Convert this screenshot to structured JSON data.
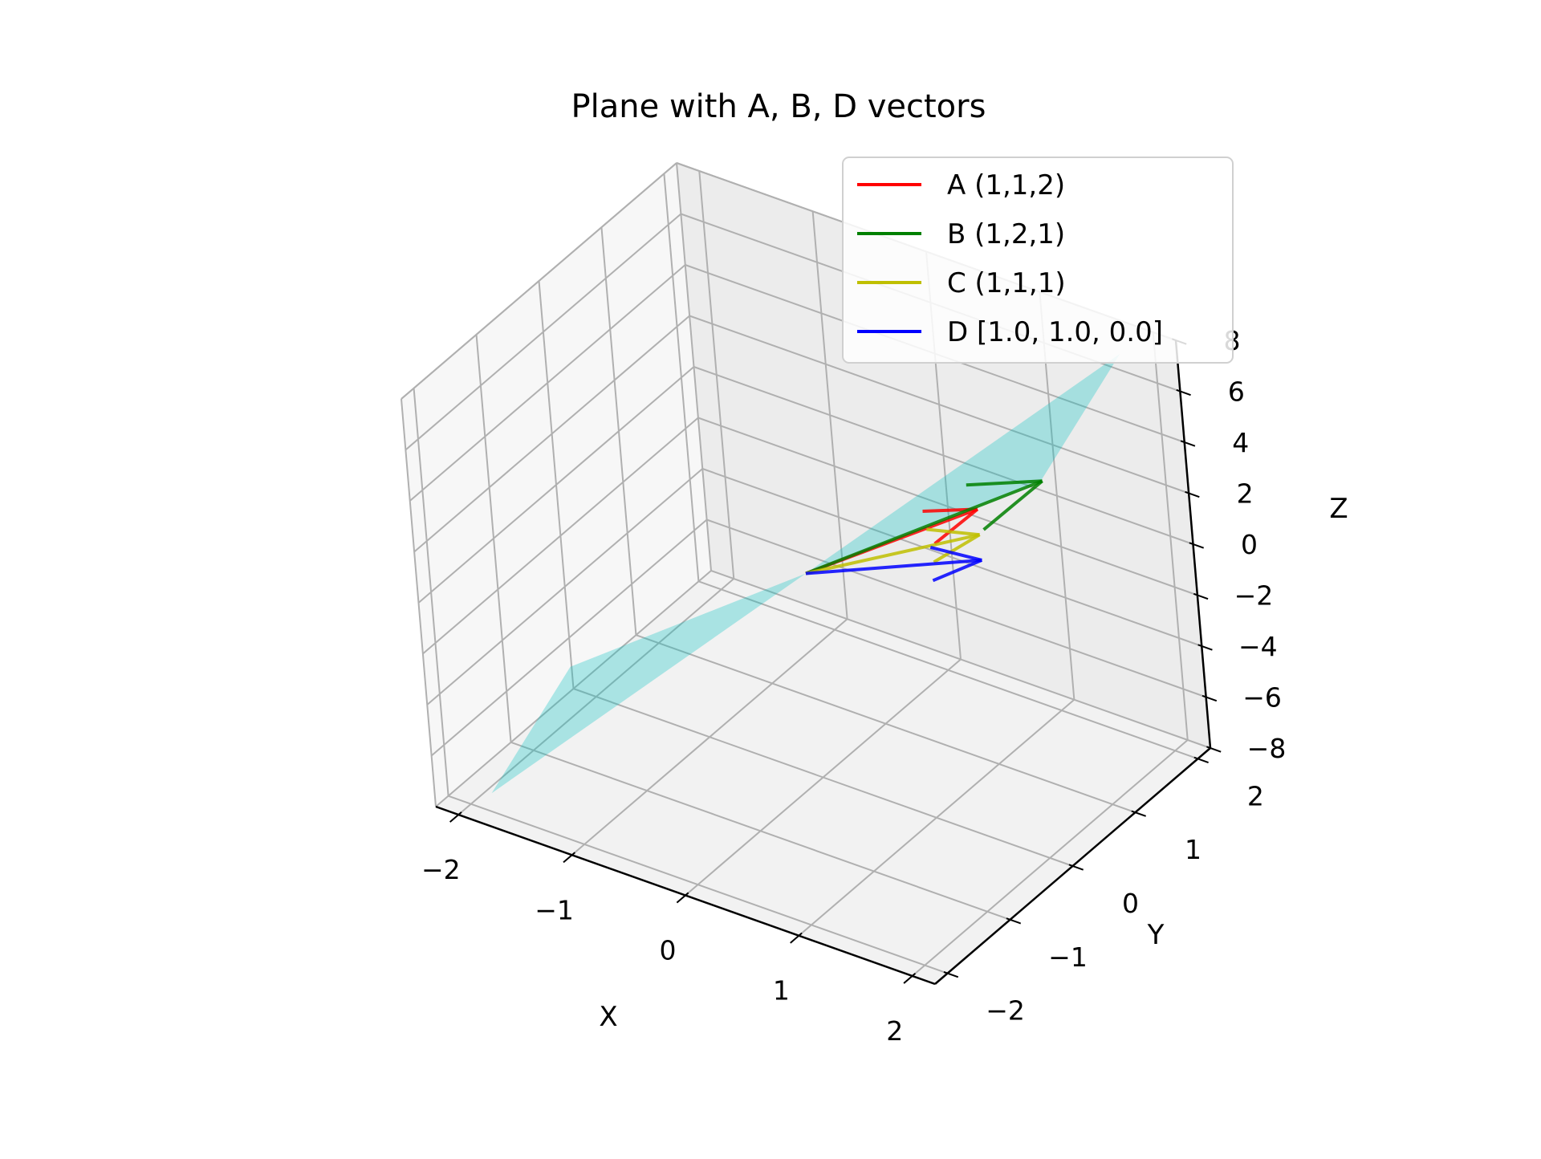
{
  "chart_data": {
    "type": "3d-vector",
    "title": "Plane with A, B, D vectors",
    "xlabel": "X",
    "ylabel": "Y",
    "zlabel": "Z",
    "xlim": [
      -2.2,
      2.2
    ],
    "ylim": [
      -2.2,
      2.2
    ],
    "zlim": [
      -8,
      8
    ],
    "x_ticks": [
      -2,
      -1,
      0,
      1,
      2
    ],
    "y_ticks": [
      -2,
      -1,
      0,
      1,
      2
    ],
    "z_ticks": [
      -8,
      -6,
      -4,
      -2,
      0,
      2,
      4,
      6,
      8
    ],
    "x_tick_labels": [
      "−2",
      "−1",
      "0",
      "1",
      "2"
    ],
    "y_tick_labels": [
      "−2",
      "−1",
      "0",
      "1",
      "2"
    ],
    "z_tick_labels": [
      "−8",
      "−6",
      "−4",
      "−2",
      "0",
      "2",
      "4",
      "6",
      "8"
    ],
    "grid": true,
    "legend_position": "top-right",
    "plane": {
      "equation": "z = 3x - y",
      "x_range": [
        -2,
        2
      ],
      "y_range": [
        -2,
        2
      ],
      "color": "#00c0c0"
    },
    "vectors": [
      {
        "name": "A (1,1,2)",
        "origin": [
          0,
          0,
          0
        ],
        "components": [
          1,
          1,
          2
        ],
        "color": "#ff0000"
      },
      {
        "name": "B (1,2,1)",
        "origin": [
          0,
          0,
          0
        ],
        "components": [
          1,
          2,
          1
        ],
        "color": "#008000"
      },
      {
        "name": "C (1,1,1)",
        "origin": [
          0,
          0,
          0
        ],
        "components": [
          1,
          1,
          1
        ],
        "color": "#bfbf00"
      },
      {
        "name": "D [1.0, 1.0, 0.0]",
        "origin": [
          0,
          0,
          0
        ],
        "components": [
          1,
          1,
          0
        ],
        "color": "#0000ff"
      }
    ]
  }
}
